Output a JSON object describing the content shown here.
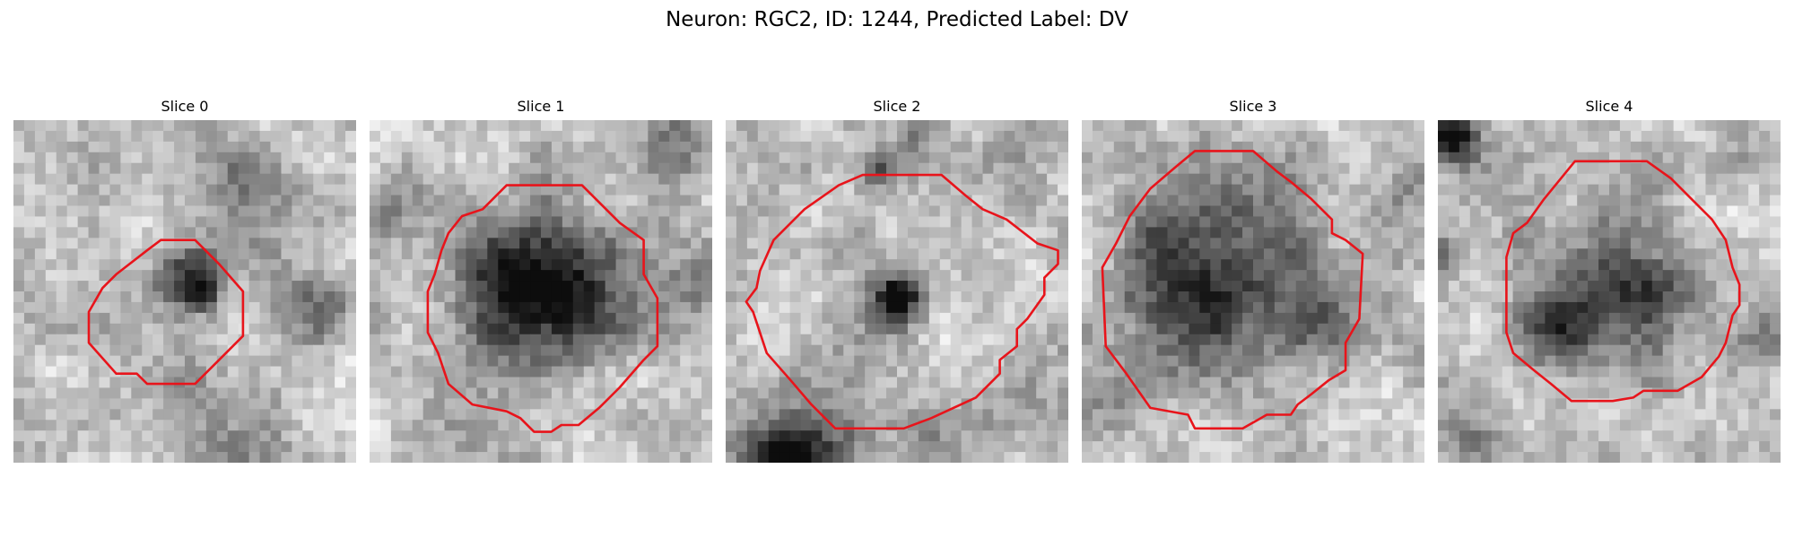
{
  "figure": {
    "title": "Neuron: RGC2, ID: 1244, Predicted Label: DV"
  },
  "contour_color": "#e8141b",
  "slices": [
    {
      "label": "Slice 0",
      "seed": 11,
      "contour": [
        [
          0.43,
          0.35
        ],
        [
          0.53,
          0.35
        ],
        [
          0.6,
          0.42
        ],
        [
          0.67,
          0.5
        ],
        [
          0.67,
          0.63
        ],
        [
          0.6,
          0.7
        ],
        [
          0.53,
          0.77
        ],
        [
          0.39,
          0.77
        ],
        [
          0.36,
          0.74
        ],
        [
          0.3,
          0.74
        ],
        [
          0.22,
          0.65
        ],
        [
          0.22,
          0.56
        ],
        [
          0.26,
          0.49
        ],
        [
          0.3,
          0.45
        ],
        [
          0.39,
          0.38
        ]
      ],
      "blobs": [
        [
          0.52,
          0.45,
          0.1,
          0.6
        ],
        [
          0.56,
          0.5,
          0.05,
          0.35
        ],
        [
          0.7,
          0.18,
          0.12,
          0.35
        ],
        [
          0.9,
          0.55,
          0.1,
          0.3
        ],
        [
          0.1,
          0.6,
          0.09,
          0.2
        ],
        [
          0.6,
          0.9,
          0.15,
          0.18
        ]
      ]
    },
    {
      "label": "Slice 1",
      "seed": 23,
      "contour": [
        [
          0.4,
          0.19
        ],
        [
          0.62,
          0.19
        ],
        [
          0.73,
          0.3
        ],
        [
          0.8,
          0.35
        ],
        [
          0.8,
          0.45
        ],
        [
          0.84,
          0.52
        ],
        [
          0.84,
          0.66
        ],
        [
          0.8,
          0.7
        ],
        [
          0.73,
          0.78
        ],
        [
          0.67,
          0.84
        ],
        [
          0.61,
          0.89
        ],
        [
          0.56,
          0.89
        ],
        [
          0.53,
          0.91
        ],
        [
          0.48,
          0.91
        ],
        [
          0.44,
          0.87
        ],
        [
          0.4,
          0.85
        ],
        [
          0.3,
          0.83
        ],
        [
          0.23,
          0.77
        ],
        [
          0.2,
          0.68
        ],
        [
          0.17,
          0.62
        ],
        [
          0.17,
          0.5
        ],
        [
          0.19,
          0.45
        ],
        [
          0.21,
          0.38
        ],
        [
          0.23,
          0.33
        ],
        [
          0.27,
          0.28
        ],
        [
          0.33,
          0.26
        ]
      ],
      "blobs": [
        [
          0.5,
          0.52,
          0.22,
          0.72
        ],
        [
          0.35,
          0.45,
          0.1,
          0.2
        ],
        [
          0.95,
          0.5,
          0.1,
          0.25
        ],
        [
          0.05,
          0.25,
          0.09,
          0.25
        ],
        [
          0.9,
          0.1,
          0.1,
          0.25
        ]
      ]
    },
    {
      "label": "Slice 2",
      "seed": 37,
      "contour": [
        [
          0.4,
          0.16
        ],
        [
          0.63,
          0.16
        ],
        [
          0.7,
          0.22
        ],
        [
          0.75,
          0.26
        ],
        [
          0.82,
          0.29
        ],
        [
          0.91,
          0.36
        ],
        [
          0.97,
          0.38
        ],
        [
          0.97,
          0.42
        ],
        [
          0.93,
          0.46
        ],
        [
          0.93,
          0.51
        ],
        [
          0.88,
          0.58
        ],
        [
          0.85,
          0.61
        ],
        [
          0.85,
          0.66
        ],
        [
          0.8,
          0.7
        ],
        [
          0.8,
          0.74
        ],
        [
          0.73,
          0.81
        ],
        [
          0.6,
          0.87
        ],
        [
          0.52,
          0.9
        ],
        [
          0.32,
          0.9
        ],
        [
          0.25,
          0.83
        ],
        [
          0.19,
          0.76
        ],
        [
          0.12,
          0.68
        ],
        [
          0.1,
          0.62
        ],
        [
          0.08,
          0.56
        ],
        [
          0.06,
          0.53
        ],
        [
          0.09,
          0.49
        ],
        [
          0.1,
          0.44
        ],
        [
          0.14,
          0.35
        ],
        [
          0.23,
          0.26
        ],
        [
          0.33,
          0.19
        ]
      ],
      "blobs": [
        [
          0.5,
          0.52,
          0.07,
          0.85
        ],
        [
          0.2,
          1.0,
          0.16,
          0.95
        ],
        [
          0.45,
          0.15,
          0.06,
          0.45
        ],
        [
          0.55,
          0.02,
          0.06,
          0.35
        ],
        [
          0.6,
          0.92,
          0.12,
          0.2
        ]
      ]
    },
    {
      "label": "Slice 3",
      "seed": 53,
      "contour": [
        [
          0.33,
          0.09
        ],
        [
          0.5,
          0.09
        ],
        [
          0.57,
          0.15
        ],
        [
          0.61,
          0.18
        ],
        [
          0.67,
          0.23
        ],
        [
          0.73,
          0.29
        ],
        [
          0.73,
          0.33
        ],
        [
          0.77,
          0.35
        ],
        [
          0.82,
          0.39
        ],
        [
          0.81,
          0.58
        ],
        [
          0.77,
          0.65
        ],
        [
          0.77,
          0.73
        ],
        [
          0.72,
          0.76
        ],
        [
          0.67,
          0.8
        ],
        [
          0.63,
          0.83
        ],
        [
          0.61,
          0.86
        ],
        [
          0.54,
          0.86
        ],
        [
          0.47,
          0.9
        ],
        [
          0.33,
          0.9
        ],
        [
          0.31,
          0.86
        ],
        [
          0.2,
          0.84
        ],
        [
          0.13,
          0.74
        ],
        [
          0.07,
          0.66
        ],
        [
          0.06,
          0.43
        ],
        [
          0.1,
          0.36
        ],
        [
          0.14,
          0.28
        ],
        [
          0.2,
          0.2
        ],
        [
          0.27,
          0.14
        ]
      ],
      "blobs": [
        [
          0.42,
          0.48,
          0.24,
          0.65
        ],
        [
          0.2,
          0.35,
          0.1,
          0.3
        ],
        [
          0.7,
          0.55,
          0.1,
          0.25
        ],
        [
          0.02,
          0.8,
          0.1,
          0.2
        ],
        [
          0.95,
          0.2,
          0.08,
          0.2
        ]
      ]
    },
    {
      "label": "Slice 4",
      "seed": 71,
      "contour": [
        [
          0.4,
          0.12
        ],
        [
          0.61,
          0.12
        ],
        [
          0.68,
          0.17
        ],
        [
          0.75,
          0.24
        ],
        [
          0.8,
          0.29
        ],
        [
          0.84,
          0.35
        ],
        [
          0.86,
          0.43
        ],
        [
          0.88,
          0.48
        ],
        [
          0.88,
          0.54
        ],
        [
          0.86,
          0.57
        ],
        [
          0.84,
          0.65
        ],
        [
          0.82,
          0.69
        ],
        [
          0.77,
          0.75
        ],
        [
          0.7,
          0.79
        ],
        [
          0.6,
          0.79
        ],
        [
          0.57,
          0.81
        ],
        [
          0.51,
          0.82
        ],
        [
          0.39,
          0.82
        ],
        [
          0.33,
          0.77
        ],
        [
          0.28,
          0.73
        ],
        [
          0.22,
          0.68
        ],
        [
          0.2,
          0.62
        ],
        [
          0.2,
          0.4
        ],
        [
          0.22,
          0.33
        ],
        [
          0.26,
          0.3
        ],
        [
          0.31,
          0.23
        ]
      ],
      "blobs": [
        [
          0.52,
          0.5,
          0.22,
          0.55
        ],
        [
          0.35,
          0.62,
          0.1,
          0.35
        ],
        [
          0.05,
          0.05,
          0.07,
          0.8
        ],
        [
          0.95,
          0.65,
          0.08,
          0.3
        ],
        [
          0.02,
          0.4,
          0.06,
          0.3
        ],
        [
          0.1,
          0.9,
          0.1,
          0.25
        ]
      ]
    }
  ]
}
